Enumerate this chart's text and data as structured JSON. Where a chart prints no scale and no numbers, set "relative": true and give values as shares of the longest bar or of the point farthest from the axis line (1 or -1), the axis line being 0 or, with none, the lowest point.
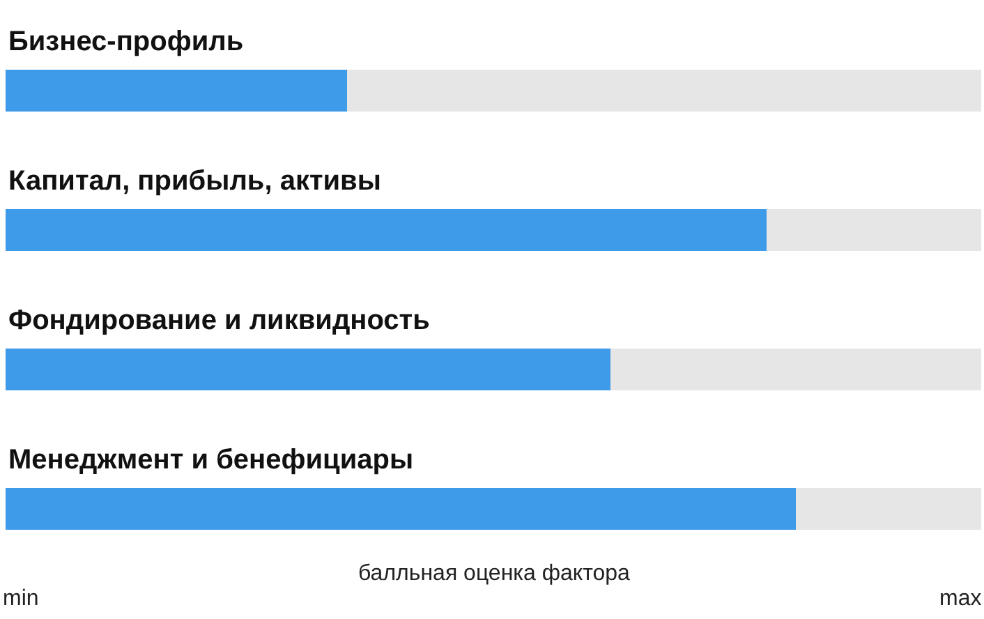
{
  "chart_data": {
    "type": "bar",
    "orientation": "horizontal",
    "stacked": true,
    "relative": true,
    "categories": [
      "Бизнес-профиль",
      "Капитал, прибыль, активы",
      "Фондирование и ликвидность",
      "Менеджмент и бенефициары"
    ],
    "series": [
      {
        "color": "#3d9be9",
        "values": [
          0.35,
          0.78,
          0.62,
          0.81
        ]
      },
      {
        "color": "#e6e6e6",
        "values": [
          0.65,
          0.22,
          0.38,
          0.19
        ]
      }
    ],
    "annotations": [
      "min",
      "балльная оценка фактора",
      "max"
    ],
    "legend": false
  }
}
